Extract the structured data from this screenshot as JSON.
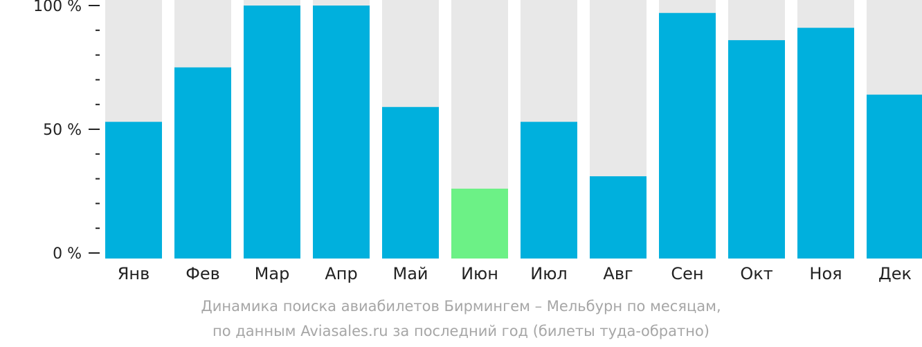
{
  "chart_data": {
    "type": "bar",
    "categories": [
      "Янв",
      "Фев",
      "Мар",
      "Апр",
      "Май",
      "Июн",
      "Июл",
      "Авг",
      "Сен",
      "Окт",
      "Ноя",
      "Дек"
    ],
    "values": [
      53,
      75,
      100,
      100,
      59,
      26,
      53,
      31,
      97,
      86,
      91,
      64
    ],
    "ylim": [
      0,
      100
    ],
    "yticks": [
      {
        "value": 0,
        "label": "0 %"
      },
      {
        "value": 50,
        "label": "50 %"
      },
      {
        "value": 100,
        "label": "100 %"
      }
    ],
    "minor_tick_step": 10,
    "grid": false,
    "colors": {
      "bar": "#00b0dd",
      "bar_highlight": "#6cf186",
      "background_bar": "#e8e8e8",
      "axis": "#222222"
    },
    "highlight_category": "Июн"
  },
  "caption": {
    "line1": "Динамика поиска авиабилетов Бирмингем – Мельбурн по месяцам,",
    "line2": "по данным Aviasales.ru за последний год (билеты туда-обратно)"
  }
}
